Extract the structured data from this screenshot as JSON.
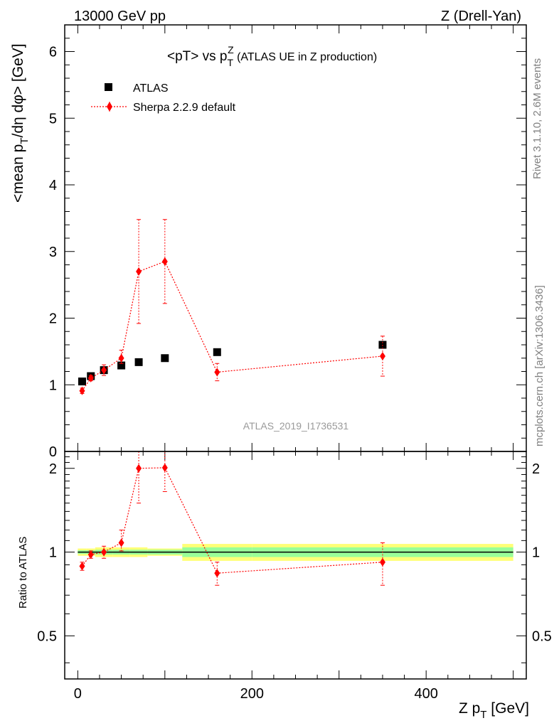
{
  "header": {
    "energy_label": "13000 GeV pp",
    "process_label": "Z (Drell-Yan)",
    "analysis_id": "ATLAS_2019_I1736531",
    "side_rivet": "Rivet 3.1.10,  2.6M events",
    "side_mcplots": "mcplots.cern.ch [arXiv:1306.3436]"
  },
  "chart_data": {
    "type": "scatter",
    "title_main": "<pT> vs p",
    "title_sub": "T",
    "title_sup": "Z",
    "title_rest": " (ATLAS UE in Z production)",
    "xlabel_main": "Z p",
    "xlabel_sub": "T",
    "xlabel_rest": " [GeV]",
    "ylabel_main": "<mean p",
    "ylabel_sub": "T",
    "ylabel_rest": "/dη dφ> [GeV]",
    "ratio_ylabel": "Ratio to ATLAS",
    "xlim": [
      -15,
      515
    ],
    "ylim": [
      0,
      6.4
    ],
    "ratio_ylim": [
      0.35,
      2.3
    ],
    "xticks": [
      0,
      200,
      400
    ],
    "xtick_labels": [
      "0",
      "200",
      "400"
    ],
    "yticks": [
      0,
      1,
      2,
      3,
      4,
      5,
      6
    ],
    "ytick_labels": [
      "0",
      "1",
      "2",
      "3",
      "4",
      "5",
      "6"
    ],
    "ratio_yticks": [
      0.5,
      1,
      2
    ],
    "ratio_ytick_labels": [
      "0.5",
      "1",
      "2"
    ],
    "legend_position": "top-left",
    "series": [
      {
        "name": "ATLAS",
        "color": "#000000",
        "marker": "square",
        "x": [
          5,
          15,
          30,
          50,
          70,
          100,
          160,
          350
        ],
        "y": [
          1.05,
          1.13,
          1.22,
          1.29,
          1.34,
          1.4,
          1.49,
          1.6
        ]
      },
      {
        "name": "Sherpa 2.2.9 default",
        "color": "#ff0000",
        "marker": "diamond",
        "line": "dotted",
        "x": [
          5,
          15,
          30,
          50,
          70,
          100,
          160,
          350
        ],
        "y": [
          0.91,
          1.1,
          1.22,
          1.4,
          2.7,
          2.85,
          1.19,
          1.43
        ],
        "yerr_low": [
          0.04,
          0.04,
          0.08,
          0.08,
          0.78,
          0.63,
          0.13,
          0.3
        ],
        "yerr_high": [
          0.04,
          0.04,
          0.08,
          0.12,
          0.78,
          0.63,
          0.13,
          0.3
        ]
      }
    ],
    "ratio": {
      "x": [
        5,
        15,
        30,
        50,
        70,
        100,
        160,
        350
      ],
      "y": [
        0.89,
        0.98,
        1.0,
        1.08,
        2.0,
        2.01,
        0.84,
        0.92
      ],
      "yerr_low": [
        0.03,
        0.03,
        0.05,
        0.07,
        0.5,
        0.36,
        0.08,
        0.16
      ],
      "yerr_high": [
        0.03,
        0.03,
        0.05,
        0.12,
        0.32,
        0.3,
        0.08,
        0.16
      ],
      "band_x_edges": [
        0,
        10,
        20,
        40,
        60,
        80,
        120,
        200,
        500
      ],
      "band_inner": [
        0.015,
        0.015,
        0.02,
        0.02,
        0.02,
        0.02,
        0.04,
        0.04
      ],
      "band_outer": [
        0.03,
        0.03,
        0.04,
        0.04,
        0.04,
        0.03,
        0.07,
        0.07
      ],
      "band_inner_color": "#99ff99",
      "band_outer_color": "#ffff77"
    }
  }
}
